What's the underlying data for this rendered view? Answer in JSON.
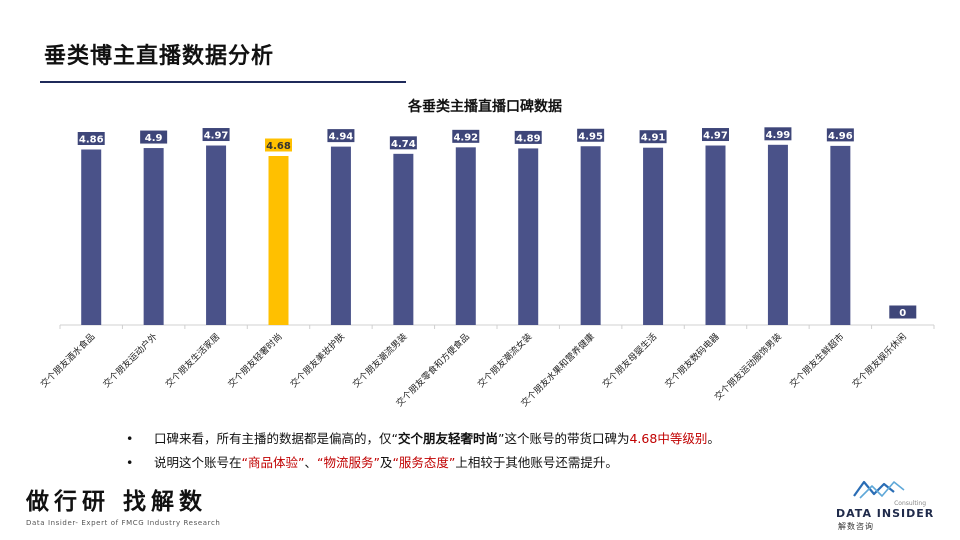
{
  "page": {
    "title": "垂类博主直播数据分析"
  },
  "chart_data": {
    "type": "bar",
    "title": "各垂类主播直播口碑数据",
    "categories": [
      "交个朋友酒水食品",
      "交个朋友运动户外",
      "交个朋友生活家居",
      "交个朋友轻奢时尚",
      "交个朋友美妆护肤",
      "交个朋友潮流男装",
      "交个朋友零食和方便食品",
      "交个朋友潮流女装",
      "交个朋友水果和营养健康",
      "交个朋友母婴生活",
      "交个朋友数码电器",
      "交个朋友运动服饰男装",
      "交个朋友生鲜超市",
      "交个朋友娱乐休闲"
    ],
    "values": [
      4.86,
      4.9,
      4.97,
      4.68,
      4.94,
      4.74,
      4.92,
      4.89,
      4.95,
      4.91,
      4.97,
      4.99,
      4.96,
      0
    ],
    "value_labels": [
      "4.86",
      "4.9",
      "4.97",
      "4.68",
      "4.94",
      "4.74",
      "4.92",
      "4.89",
      "4.95",
      "4.91",
      "4.97",
      "4.99",
      "4.96",
      "0"
    ],
    "highlight_index": 3,
    "ylim": [
      0,
      5.4
    ],
    "grid": false,
    "legend": "none",
    "colors": {
      "bar": "#4a5289",
      "highlight": "#ffc000",
      "label_bg": "#3e4679",
      "label_text": "#ffffff",
      "highlight_label_text": "#333333",
      "axis": "#d0d0d0"
    }
  },
  "notes": [
    {
      "bullet": "•",
      "segments": [
        {
          "text": "口碑来看，所有主播的数据都是偏高的，仅",
          "style": "plain"
        },
        {
          "text": "“",
          "style": "plain"
        },
        {
          "text": "交个朋友轻奢时尚",
          "style": "bold"
        },
        {
          "text": "”这个账号的带货口碑为",
          "style": "plain"
        },
        {
          "text": "4.68中等级别",
          "style": "red"
        },
        {
          "text": "。",
          "style": "plain"
        }
      ]
    },
    {
      "bullet": "•",
      "segments": [
        {
          "text": "说明这个账号在",
          "style": "plain"
        },
        {
          "text": "“商品体验”",
          "style": "red"
        },
        {
          "text": "、",
          "style": "plain"
        },
        {
          "text": "“物流服务”",
          "style": "red"
        },
        {
          "text": "及",
          "style": "plain"
        },
        {
          "text": "“服务态度”",
          "style": "red"
        },
        {
          "text": "上相较于其他账号还需提升。",
          "style": "plain"
        }
      ]
    }
  ],
  "footer": {
    "slogan": "做行研 找解数",
    "subtitle": "Data Insider- Expert of FMCG Industry Research"
  },
  "logo": {
    "consulting": "Consulting",
    "name": "DATA INSIDER",
    "cn": "解数咨询",
    "icon": "data-insider-logo-icon"
  }
}
